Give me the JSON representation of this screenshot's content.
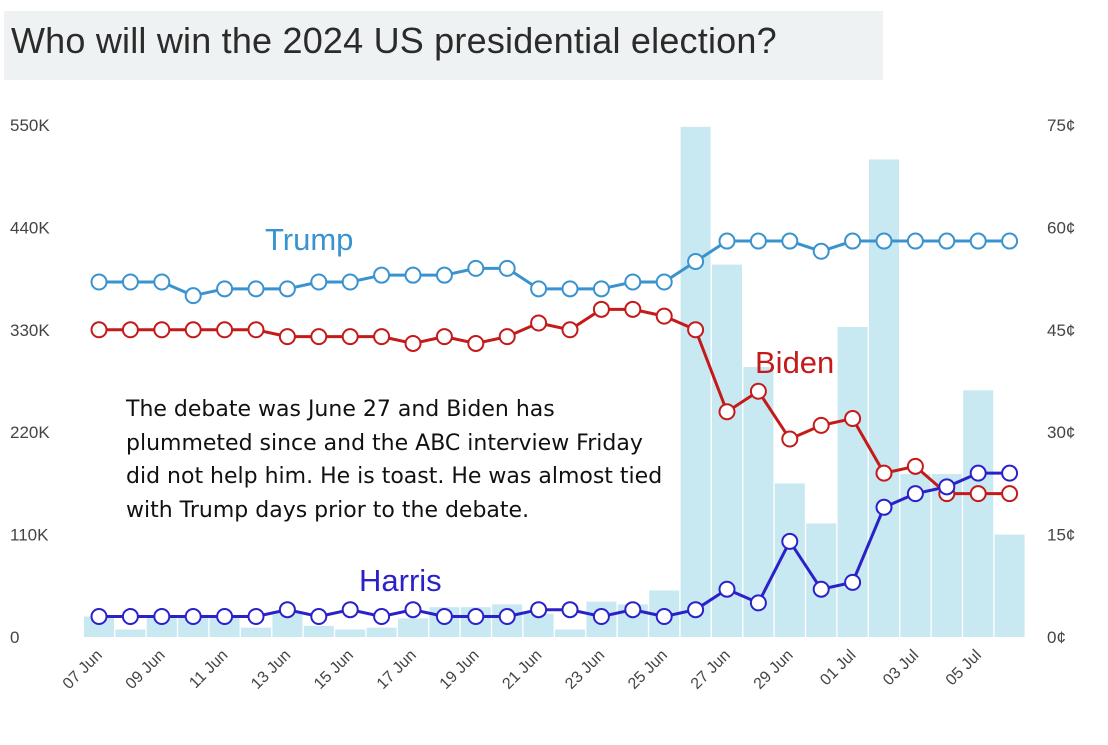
{
  "title": "Who will win the 2024 US presidential election?",
  "note": "The debate was June 27 and Biden has plummeted since and the ABC interview Friday did not help him. He is toast. He was almost tied with Trump days prior to the debate.",
  "colors": {
    "trump": "#3a93cf",
    "biden": "#c41a1a",
    "harris": "#2a22c8",
    "volume": "#c8e8f2"
  },
  "chart_data": {
    "type": "line",
    "x": [
      "07 Jun",
      "08 Jun",
      "09 Jun",
      "10 Jun",
      "11 Jun",
      "12 Jun",
      "13 Jun",
      "14 Jun",
      "15 Jun",
      "16 Jun",
      "17 Jun",
      "18 Jun",
      "19 Jun",
      "20 Jun",
      "21 Jun",
      "22 Jun",
      "23 Jun",
      "24 Jun",
      "25 Jun",
      "26 Jun",
      "27 Jun",
      "28 Jun",
      "29 Jun",
      "30 Jun",
      "01 Jul",
      "02 Jul",
      "03 Jul",
      "04 Jul",
      "05 Jul",
      "06 Jul"
    ],
    "x_tick_labels": [
      "07 Jun",
      "09 Jun",
      "11 Jun",
      "13 Jun",
      "15 Jun",
      "17 Jun",
      "19 Jun",
      "21 Jun",
      "23 Jun",
      "25 Jun",
      "27 Jun",
      "29 Jun",
      "01 Jul",
      "03 Jul",
      "05 Jul"
    ],
    "left_axis": {
      "ticks": [
        "0",
        "110K",
        "220K",
        "330K",
        "440K",
        "550K"
      ],
      "range": [
        0,
        550000
      ]
    },
    "right_axis": {
      "ticks": [
        "0¢",
        "15¢",
        "30¢",
        "45¢",
        "60¢",
        "75¢"
      ],
      "range": [
        0,
        75
      ]
    },
    "volume": [
      22000,
      8000,
      22000,
      22000,
      22000,
      10000,
      28000,
      12000,
      8000,
      10000,
      20000,
      32000,
      32000,
      35000,
      25000,
      8000,
      38000,
      35000,
      50000,
      548000,
      400000,
      290000,
      165000,
      122000,
      333000,
      513000,
      175000,
      175000,
      265000,
      110000
    ],
    "series": [
      {
        "name": "Trump",
        "values": [
          52,
          52,
          52,
          50,
          51,
          51,
          51,
          52,
          52,
          53,
          53,
          53,
          54,
          54,
          51,
          51,
          51,
          52,
          52,
          55,
          58,
          58,
          58,
          56.5,
          58,
          58,
          58,
          58,
          58,
          58
        ]
      },
      {
        "name": "Biden",
        "values": [
          45,
          45,
          45,
          45,
          45,
          45,
          44,
          44,
          44,
          44,
          43,
          44,
          43,
          44,
          46,
          45,
          48,
          48,
          47,
          45,
          33,
          36,
          29,
          31,
          32,
          24,
          25,
          21,
          21,
          21
        ]
      },
      {
        "name": "Harris",
        "values": [
          3,
          3,
          3,
          3,
          3,
          3,
          4,
          3,
          4,
          3,
          4,
          3,
          3,
          3,
          4,
          4,
          3,
          4,
          3,
          4,
          7,
          5,
          14,
          7,
          8,
          19,
          21,
          22,
          24,
          24
        ]
      }
    ]
  }
}
